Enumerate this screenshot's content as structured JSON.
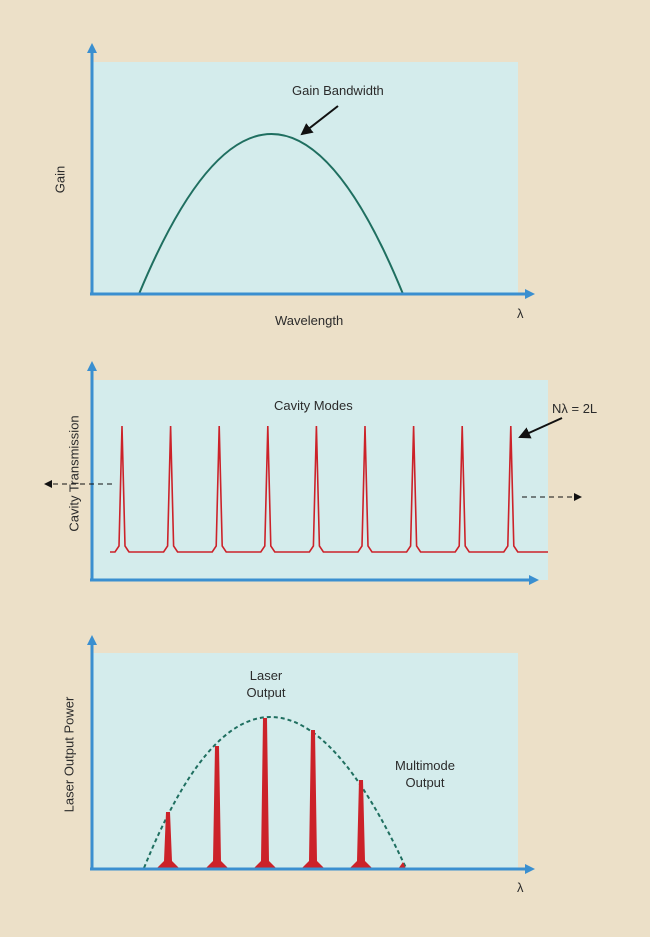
{
  "colors": {
    "background": "#ece0c8",
    "panel": "#d4ecec",
    "axis": "#3a8fd0",
    "gain_curve": "#1f6f60",
    "mode_red": "#cc2229",
    "dotted_envelope": "#1f6f60"
  },
  "panel1": {
    "ylabel": "Gain",
    "xlabel": "Wavelength",
    "axis_symbol": "λ",
    "annotation": "Gain Bandwidth"
  },
  "panel2": {
    "ylabel": "Cavity Transmission",
    "title": "Cavity Modes",
    "annotation": "Nλ = 2L",
    "mode_count": 9
  },
  "panel3": {
    "ylabel": "Laser Output Power",
    "axis_symbol": "λ",
    "annotation_top_line1": "Laser",
    "annotation_top_line2": "Output",
    "annotation_right_line1": "Multimode",
    "annotation_right_line2": "Output",
    "output_mode_count": 5
  }
}
